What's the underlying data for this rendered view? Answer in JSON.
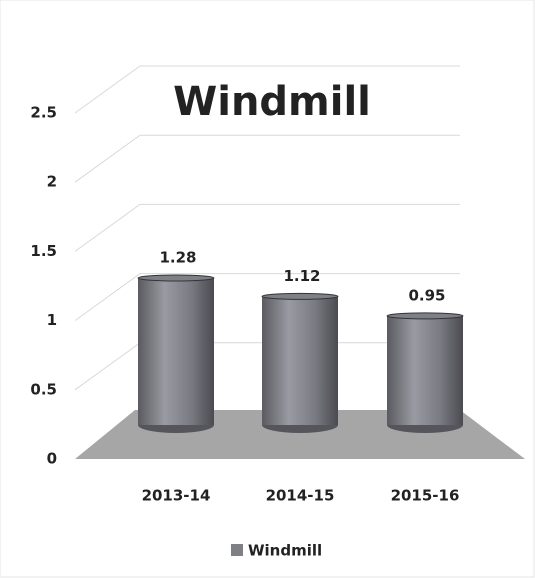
{
  "chart_data": {
    "type": "bar",
    "title": "Windmill",
    "categories": [
      "2013-14",
      "2014-15",
      "2015-16"
    ],
    "series": [
      {
        "name": "Windmill",
        "color": "#7f7f86",
        "values": [
          1.28,
          1.12,
          0.95
        ]
      }
    ],
    "ylim": [
      0,
      2.5
    ],
    "yticks": [
      0,
      0.5,
      1,
      1.5,
      2,
      2.5
    ],
    "grid": true,
    "legend": "bottom"
  }
}
